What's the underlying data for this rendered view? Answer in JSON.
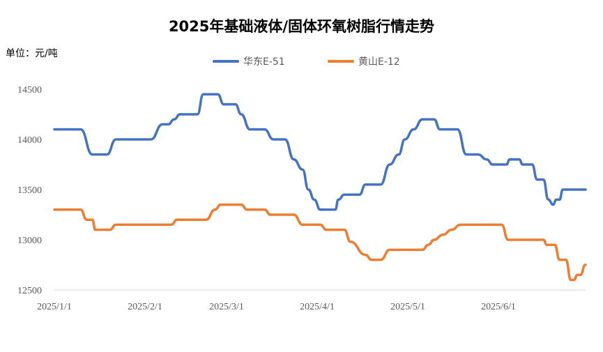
{
  "chart_data": {
    "type": "line",
    "title": "2025年基础液体/固体环氧树脂行情走势",
    "unit": "单位：元/吨",
    "ylim": [
      12500,
      14500
    ],
    "yticks": [
      "14500",
      "14000",
      "13500",
      "13000",
      "12500"
    ],
    "xticks": [
      "2025/1/1",
      "2025/2/1",
      "2025/3/1",
      "2025/4/1",
      "2025/5/1",
      "2025/6/1"
    ],
    "x_start": "2025/1/1",
    "x_end": "2025/6/30",
    "grid": false,
    "legend_position": "top",
    "series": [
      {
        "name": "华东E-51",
        "color": "#4472C4",
        "points": [
          [
            "2025/1/1",
            14100
          ],
          [
            "2025/1/10",
            14100
          ],
          [
            "2025/1/14",
            13850
          ],
          [
            "2025/1/19",
            13850
          ],
          [
            "2025/1/22",
            14000
          ],
          [
            "2025/2/3",
            14000
          ],
          [
            "2025/2/7",
            14150
          ],
          [
            "2025/2/9",
            14150
          ],
          [
            "2025/2/11",
            14200
          ],
          [
            "2025/2/13",
            14250
          ],
          [
            "2025/2/19",
            14250
          ],
          [
            "2025/2/21",
            14450
          ],
          [
            "2025/2/26",
            14450
          ],
          [
            "2025/2/28",
            14350
          ],
          [
            "2025/3/4",
            14350
          ],
          [
            "2025/3/6",
            14250
          ],
          [
            "2025/3/9",
            14100
          ],
          [
            "2025/3/14",
            14100
          ],
          [
            "2025/3/17",
            14000
          ],
          [
            "2025/3/21",
            14000
          ],
          [
            "2025/3/24",
            13800
          ],
          [
            "2025/3/27",
            13700
          ],
          [
            "2025/3/29",
            13500
          ],
          [
            "2025/3/31",
            13400
          ],
          [
            "2025/4/2",
            13300
          ],
          [
            "2025/4/7",
            13300
          ],
          [
            "2025/4/8",
            13400
          ],
          [
            "2025/4/10",
            13450
          ],
          [
            "2025/4/15",
            13450
          ],
          [
            "2025/4/17",
            13550
          ],
          [
            "2025/4/22",
            13550
          ],
          [
            "2025/4/25",
            13750
          ],
          [
            "2025/4/28",
            13850
          ],
          [
            "2025/4/30",
            14000
          ],
          [
            "2025/5/3",
            14100
          ],
          [
            "2025/5/6",
            14200
          ],
          [
            "2025/5/10",
            14200
          ],
          [
            "2025/5/12",
            14100
          ],
          [
            "2025/5/18",
            14100
          ],
          [
            "2025/5/21",
            13850
          ],
          [
            "2025/5/25",
            13850
          ],
          [
            "2025/5/28",
            13800
          ],
          [
            "2025/5/30",
            13750
          ],
          [
            "2025/6/6",
            13750
          ],
          [
            "2025/6/8",
            13800
          ],
          [
            "2025/6/14",
            13800
          ],
          [
            "2025/6/16",
            13750
          ],
          [
            "2025/6/22",
            13750
          ],
          [
            "2025/6/25",
            13600
          ],
          [
            "2025/6/29",
            13600
          ],
          [
            "2025/7/2",
            13400
          ],
          [
            "2025/7/5",
            13350
          ],
          [
            "2025/7/7",
            13400
          ],
          [
            "2025/7/9",
            13400
          ],
          [
            "2025/7/11",
            13500
          ],
          [
            "2025/7/30",
            13500
          ]
        ]
      },
      {
        "name": "黄山E-12",
        "color": "#ED7D31",
        "points": [
          [
            "2025/1/1",
            13300
          ],
          [
            "2025/1/10",
            13300
          ],
          [
            "2025/1/12",
            13200
          ],
          [
            "2025/1/14",
            13200
          ],
          [
            "2025/1/15",
            13100
          ],
          [
            "2025/1/20",
            13100
          ],
          [
            "2025/1/22",
            13150
          ],
          [
            "2025/2/10",
            13150
          ],
          [
            "2025/2/12",
            13200
          ],
          [
            "2025/2/22",
            13200
          ],
          [
            "2025/2/25",
            13300
          ],
          [
            "2025/2/27",
            13350
          ],
          [
            "2025/3/6",
            13350
          ],
          [
            "2025/3/8",
            13300
          ],
          [
            "2025/3/14",
            13300
          ],
          [
            "2025/3/16",
            13250
          ],
          [
            "2025/3/24",
            13250
          ],
          [
            "2025/3/27",
            13150
          ],
          [
            "2025/4/2",
            13150
          ],
          [
            "2025/4/4",
            13100
          ],
          [
            "2025/4/10",
            13100
          ],
          [
            "2025/4/12",
            12980
          ],
          [
            "2025/4/17",
            12850
          ],
          [
            "2025/4/19",
            12800
          ],
          [
            "2025/4/22",
            12800
          ],
          [
            "2025/4/25",
            12900
          ],
          [
            "2025/5/6",
            12900
          ],
          [
            "2025/5/8",
            12950
          ],
          [
            "2025/5/10",
            13000
          ],
          [
            "2025/5/13",
            13050
          ],
          [
            "2025/5/16",
            13100
          ],
          [
            "2025/5/19",
            13150
          ],
          [
            "2025/6/3",
            13150
          ],
          [
            "2025/6/7",
            13000
          ],
          [
            "2025/6/29",
            13000
          ],
          [
            "2025/7/1",
            12950
          ],
          [
            "2025/7/6",
            12950
          ],
          [
            "2025/7/9",
            12800
          ],
          [
            "2025/7/13",
            12800
          ],
          [
            "2025/7/16",
            12600
          ],
          [
            "2025/7/18",
            12600
          ],
          [
            "2025/7/20",
            12650
          ],
          [
            "2025/7/22",
            12650
          ],
          [
            "2025/7/25",
            12750
          ],
          [
            "2025/8/21",
            12750
          ]
        ]
      }
    ]
  }
}
